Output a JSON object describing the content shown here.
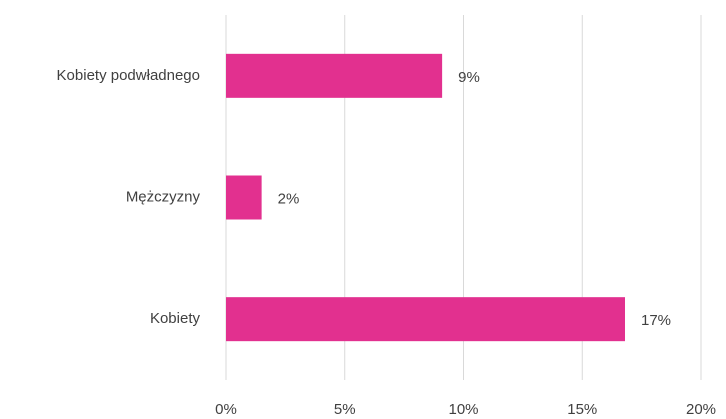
{
  "chart_data": {
    "type": "bar",
    "orientation": "horizontal",
    "categories": [
      "Kobiety podwładnego",
      "Mężczyzny",
      "Kobiety"
    ],
    "values": [
      9.1,
      1.5,
      16.8
    ],
    "value_labels": [
      "9%",
      "2%",
      "17%"
    ],
    "color": "#e2308f",
    "xlim": [
      0,
      20
    ],
    "xticks": [
      {
        "value": 0,
        "label": "0%"
      },
      {
        "value": 5,
        "label": "5%"
      },
      {
        "value": 10,
        "label": "10%"
      },
      {
        "value": 15,
        "label": "15%"
      },
      {
        "value": 20,
        "label": "20%"
      }
    ],
    "grid": true
  }
}
